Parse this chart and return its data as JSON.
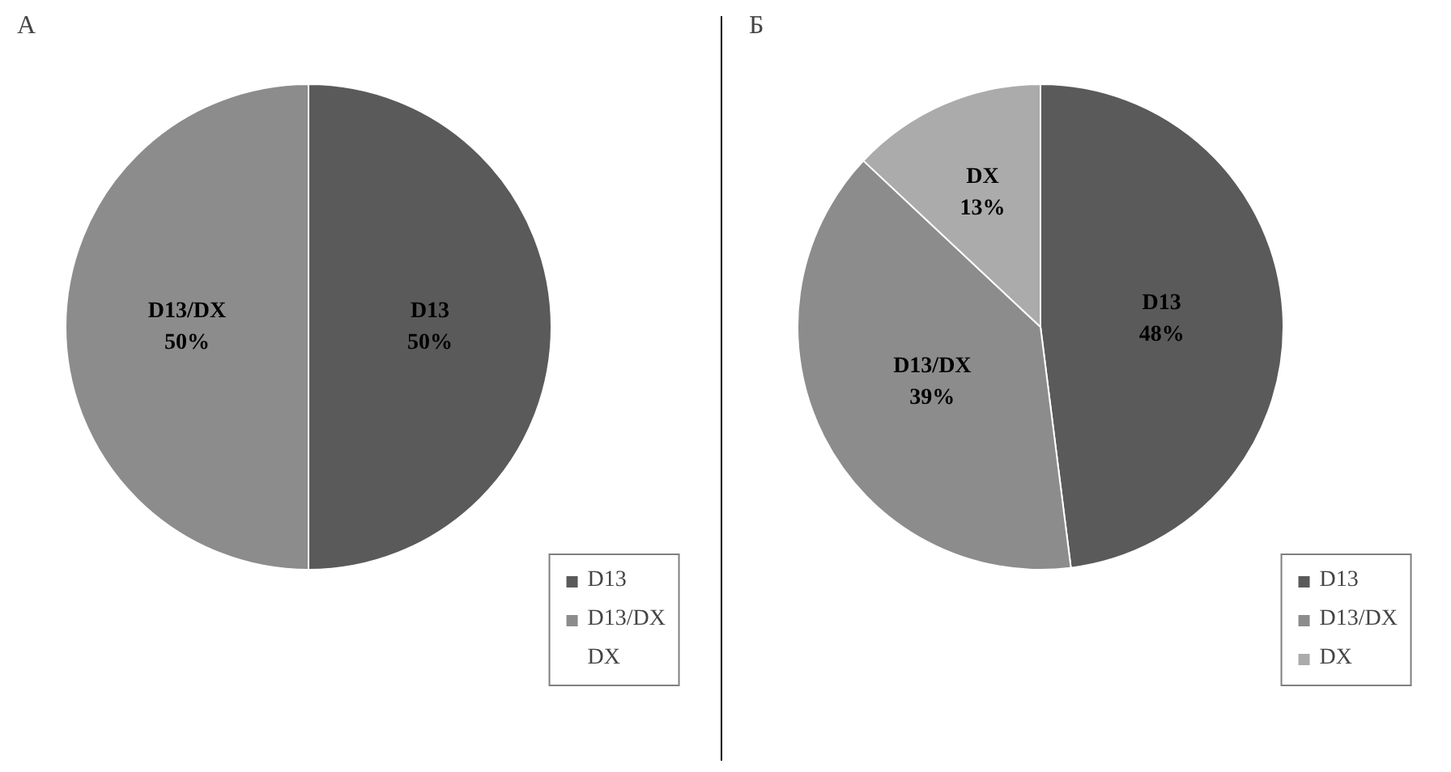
{
  "chart_data": [
    {
      "type": "pie",
      "title": "А",
      "categories": [
        "D13",
        "D13/DX",
        "DX"
      ],
      "values": [
        50,
        50,
        0
      ],
      "colors": [
        "#5a5a5a",
        "#8c8c8c",
        "#ababab"
      ],
      "value_labels": [
        "50%",
        "50%",
        null
      ],
      "legend": "bottom right"
    },
    {
      "type": "pie",
      "title": "Б",
      "categories": [
        "D13",
        "D13/DX",
        "DX"
      ],
      "values": [
        48,
        39,
        13
      ],
      "colors": [
        "#5a5a5a",
        "#8c8c8c",
        "#ababab"
      ],
      "value_labels": [
        "48%",
        "39%",
        "13%"
      ],
      "legend": "bottom right"
    }
  ]
}
